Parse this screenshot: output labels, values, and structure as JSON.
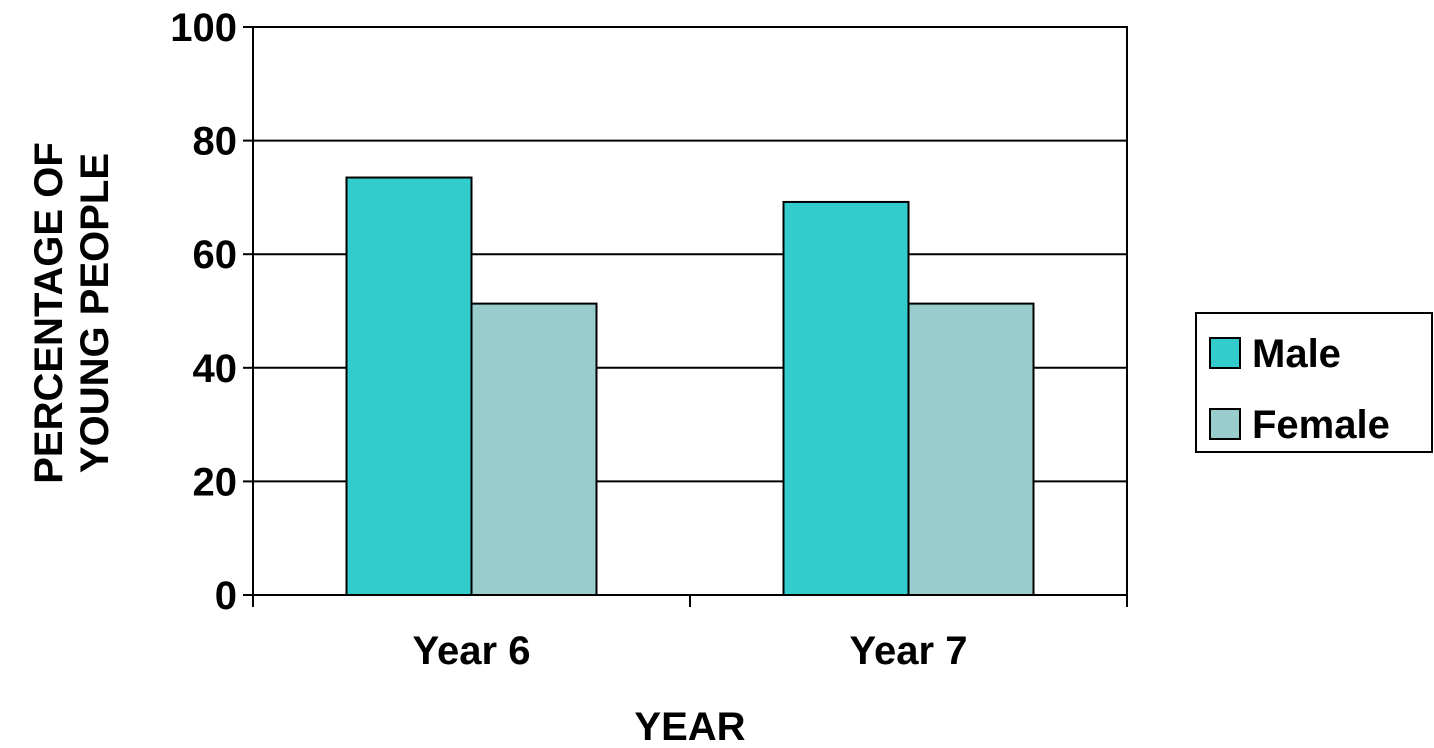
{
  "chart_data": {
    "type": "bar",
    "categories": [
      "Year 6",
      "Year 7"
    ],
    "series": [
      {
        "name": "Male",
        "values": [
          73.5,
          69.2
        ],
        "color": "#33CCCC"
      },
      {
        "name": "Female",
        "values": [
          51.3,
          51.3
        ],
        "color": "#99CCCC"
      }
    ],
    "xlabel": "YEAR",
    "ylabel_lines": [
      "PERCENTAGE OF",
      "YOUNG PEOPLE"
    ],
    "ylim": [
      0,
      100
    ],
    "yticks": [
      0,
      20,
      40,
      60,
      80,
      100
    ],
    "grid": true,
    "legend_position": "right"
  }
}
